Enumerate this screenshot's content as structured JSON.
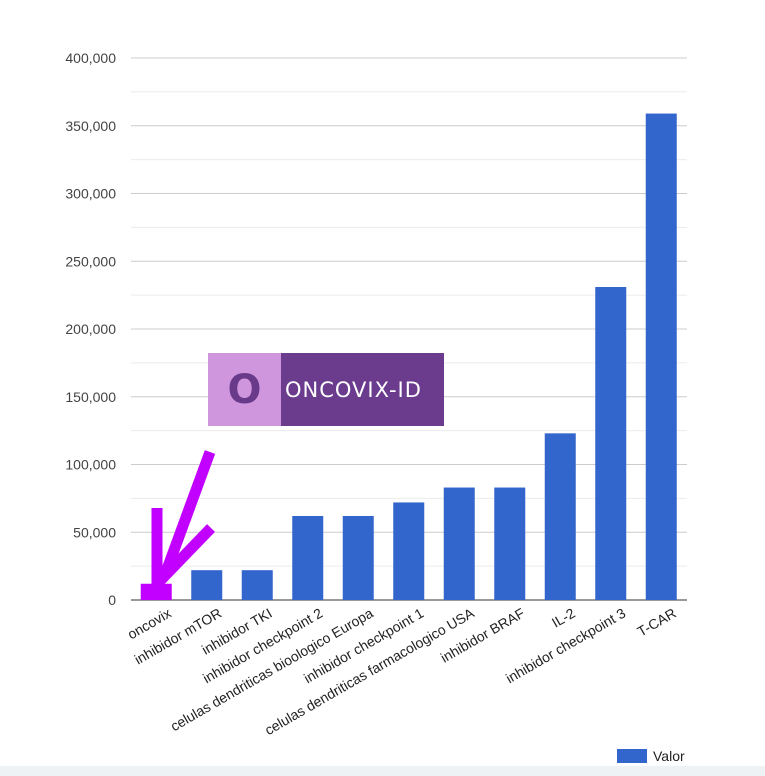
{
  "chart_data": {
    "type": "bar",
    "categories": [
      "oncovix",
      "inhibidor mTOR",
      "inhibidor TKI",
      "inhibidor checkpoint 2",
      "celulas dendriticas bioologico Europa",
      "inhibidor checkpoint 1",
      "celulas dendriticas farmacologico USA",
      "inhibidor BRAF",
      "IL-2",
      "inhibidor checkpoint 3",
      "T-CAR"
    ],
    "series": [
      {
        "name": "Valor",
        "values": [
          12000,
          22000,
          22000,
          62000,
          62000,
          72000,
          83000,
          83000,
          123000,
          231000,
          359000
        ]
      }
    ],
    "highlight_index": 0,
    "ylim": [
      0,
      400000
    ],
    "yticks": [
      0,
      50000,
      100000,
      150000,
      200000,
      250000,
      300000,
      350000,
      400000
    ],
    "ytick_labels": [
      "0",
      "50,000",
      "100,000",
      "150,000",
      "200,000",
      "250,000",
      "300,000",
      "350,000",
      "400,000"
    ],
    "grid": true,
    "legend_position": "bottom-right",
    "colors": {
      "bar": "#3366cc",
      "highlight_bar": "#c200ff",
      "arrow": "#c200ff",
      "gridline": "#cccccc",
      "minor_gridline": "#ebebeb",
      "axis_text": "#444444"
    }
  },
  "logo": {
    "mark": "O",
    "text": "ONCOVIX-ID"
  }
}
